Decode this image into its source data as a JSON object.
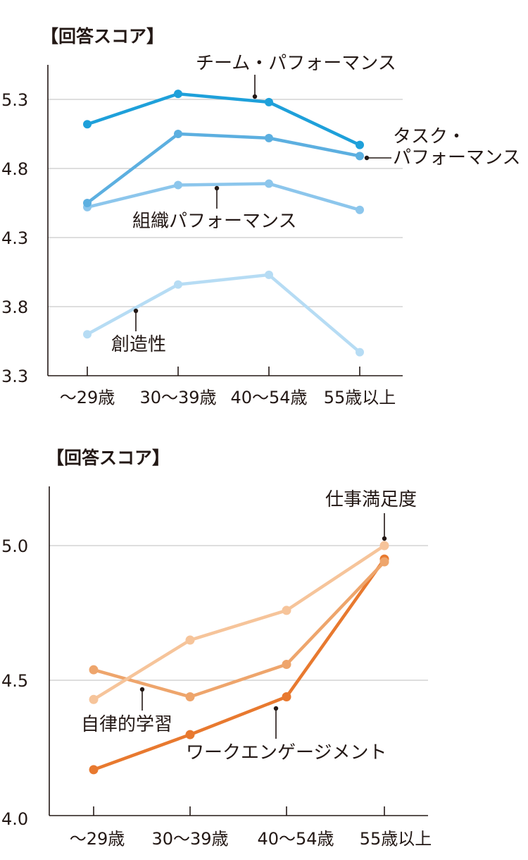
{
  "chart_data": [
    {
      "type": "line",
      "title": "【回答スコア】",
      "categories": [
        "～29歳",
        "30～39歳",
        "40～54歳",
        "55歳以上"
      ],
      "yticks": [
        "5.3",
        "4.8",
        "4.3",
        "3.8",
        "3.3"
      ],
      "ylim": [
        3.3,
        5.3
      ],
      "grid": true,
      "series": [
        {
          "name": "チーム・パフォーマンス",
          "color": "#1ea0da",
          "values": [
            5.12,
            5.34,
            5.28,
            4.97
          ]
        },
        {
          "name": "タスク・パフォーマンス",
          "color": "#5cafe0",
          "values": [
            4.55,
            5.05,
            5.02,
            4.89
          ]
        },
        {
          "name": "組織パフォーマンス",
          "color": "#8cc6ec",
          "values": [
            4.52,
            4.68,
            4.69,
            4.5
          ]
        },
        {
          "name": "創造性",
          "color": "#b6dcf4",
          "values": [
            3.6,
            3.96,
            4.03,
            3.47
          ]
        }
      ]
    },
    {
      "type": "line",
      "title": "【回答スコア】",
      "categories": [
        "～29歳",
        "30～39歳",
        "40～54歳",
        "55歳以上"
      ],
      "yticks": [
        "5.0",
        "4.5",
        "4.0"
      ],
      "ylim": [
        4.0,
        5.0
      ],
      "grid": true,
      "series": [
        {
          "name": "仕事満足度",
          "color": "#f6c49a",
          "values": [
            4.43,
            4.65,
            4.76,
            5.0
          ]
        },
        {
          "name": "自律的学習",
          "color": "#eea56c",
          "values": [
            4.54,
            4.44,
            4.56,
            4.94
          ]
        },
        {
          "name": "ワークエンゲージメント",
          "color": "#e8792f",
          "values": [
            4.17,
            4.3,
            4.44,
            4.95
          ]
        }
      ]
    }
  ]
}
